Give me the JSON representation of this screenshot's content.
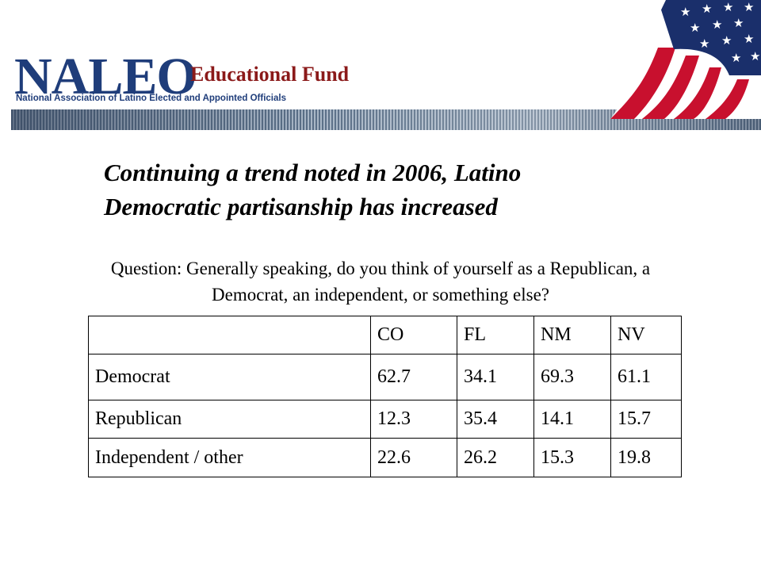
{
  "header": {
    "logo_main": "NALEO",
    "logo_sub1": "Educational Fund",
    "logo_sub2": "National Association of Latino Elected and Appointed Officials"
  },
  "slide": {
    "title_line1": "Continuing a trend noted in 2006, Latino",
    "title_line2": "Democratic partisanship has increased",
    "question_line1": "Question: Generally speaking, do you think of yourself as a Republican, a",
    "question_line2": "Democrat, an independent, or something else?"
  },
  "table": {
    "columns": [
      "",
      "CO",
      "FL",
      "NM",
      "NV"
    ],
    "rows": [
      [
        "Democrat",
        "62.7",
        "34.1",
        "69.3",
        "61.1"
      ],
      [
        "Republican",
        "12.3",
        "35.4",
        "14.1",
        "15.7"
      ],
      [
        "Independent / other",
        "22.6",
        "26.2",
        "15.3",
        "19.8"
      ]
    ]
  },
  "colors": {
    "logo_blue": "#1f3d7a",
    "logo_red": "#8b1a1a",
    "flag_red": "#c8102e",
    "flag_blue": "#1a2f6b"
  },
  "icons": {
    "flag": "american-flag-icon"
  }
}
